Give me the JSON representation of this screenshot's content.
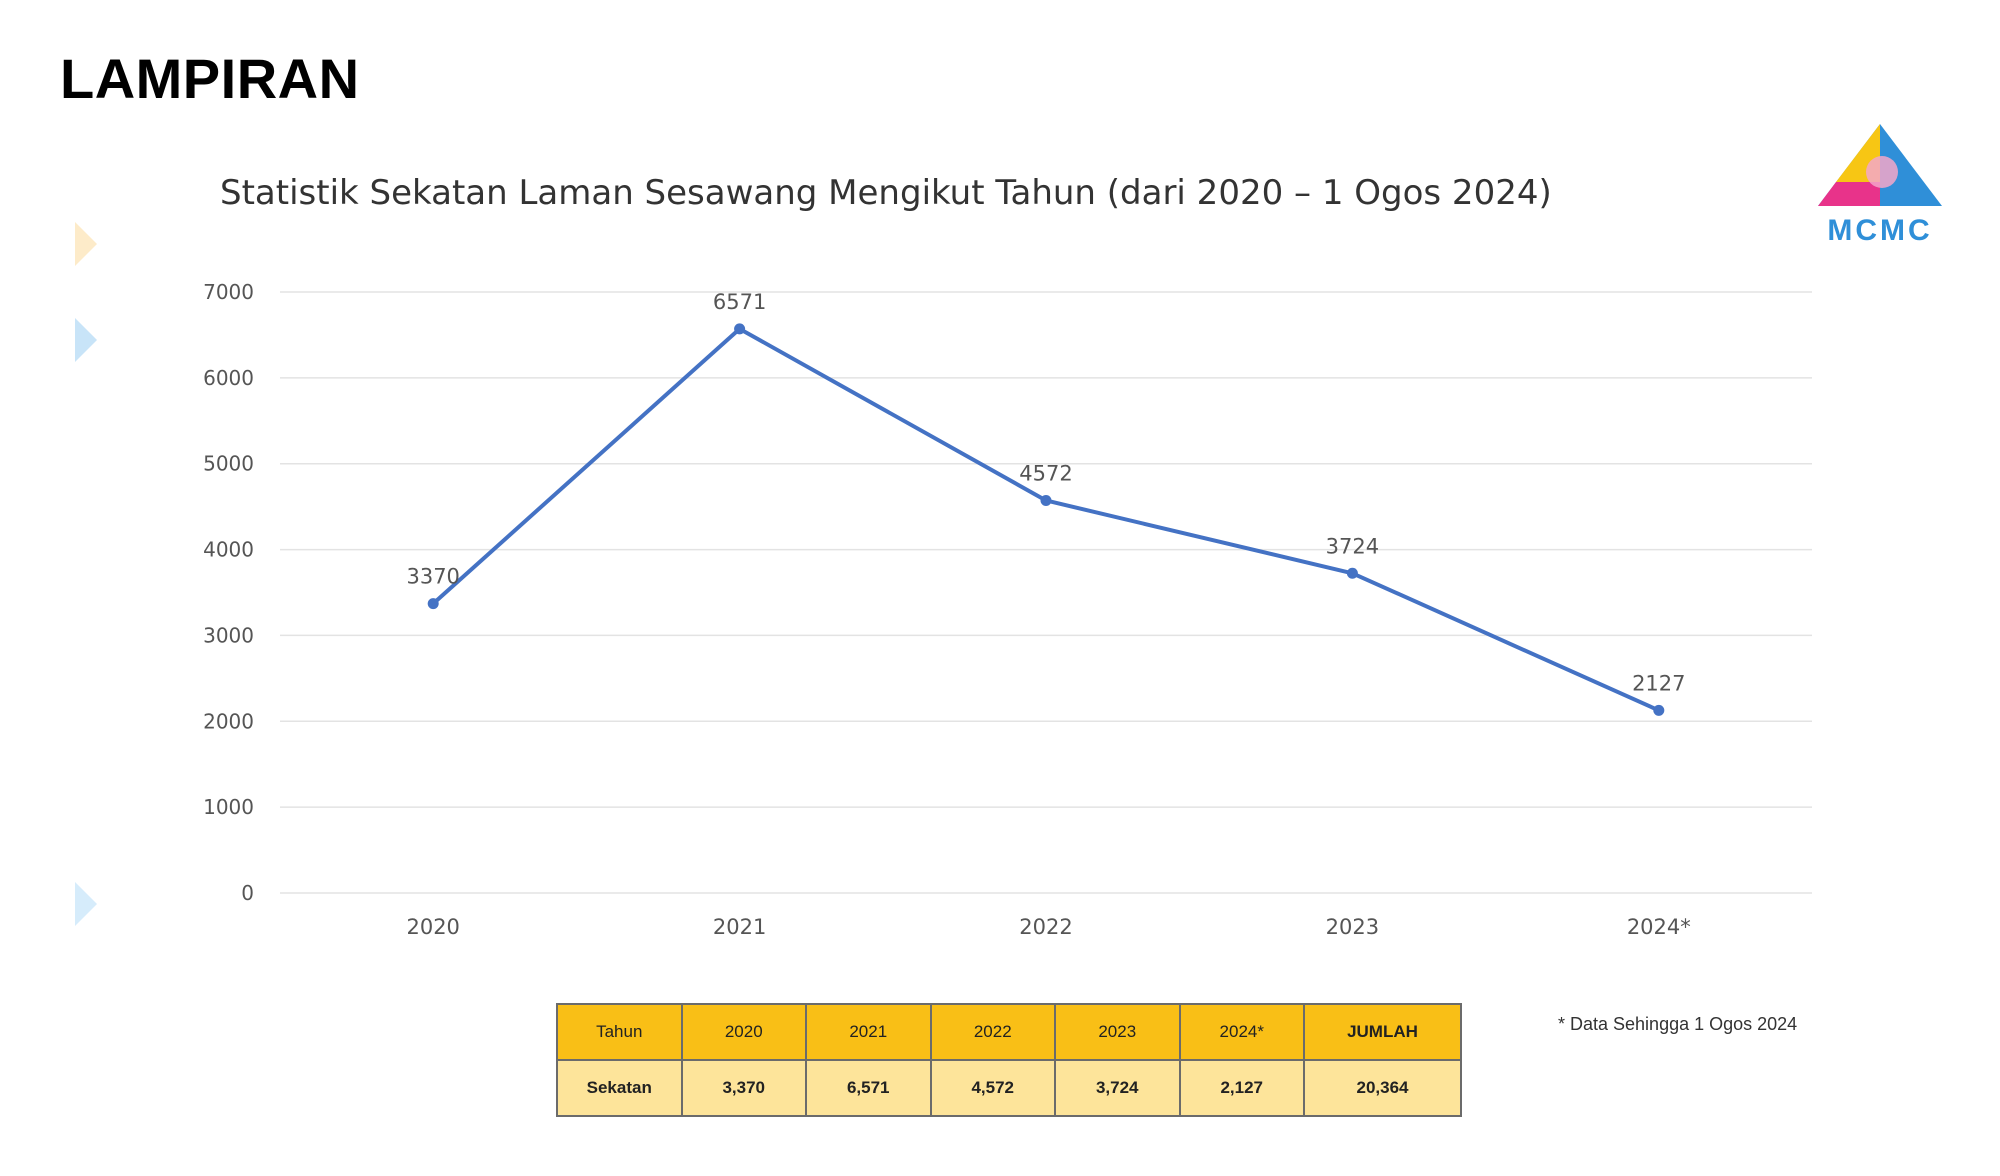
{
  "heading": "LAMPIRAN",
  "logo_text": "MCMC",
  "colors": {
    "line": "#4472c4",
    "table_header": "#f9bf16",
    "table_body": "#fde49a",
    "logo_blue": "#2f8fd8",
    "logo_yellow": "#f7c614",
    "logo_pink": "#e8338a"
  },
  "chart_data": {
    "type": "line",
    "title": "Statistik Sekatan Laman Sesawang Mengikut Tahun (dari 2020 – 1 Ogos 2024)",
    "categories": [
      "2020",
      "2021",
      "2022",
      "2023",
      "2024*"
    ],
    "series": [
      {
        "values": [
          3370,
          6571,
          4572,
          3724,
          2127
        ]
      }
    ],
    "data_labels": [
      "3370",
      "6571",
      "4572",
      "3724",
      "2127"
    ],
    "y_ticks": [
      "0",
      "1000",
      "2000",
      "3000",
      "4000",
      "5000",
      "6000",
      "7000"
    ],
    "ylim": [
      0,
      7000
    ],
    "grid": true,
    "xlabel": "",
    "ylabel": ""
  },
  "table": {
    "header": [
      "Tahun",
      "2020",
      "2021",
      "2022",
      "2023",
      "2024*",
      "JUMLAH"
    ],
    "row": [
      "Sekatan",
      "3,370",
      "6,571",
      "4,572",
      "3,724",
      "2,127",
      "20,364"
    ]
  },
  "footnote": "* Data Sehingga 1 Ogos 2024"
}
